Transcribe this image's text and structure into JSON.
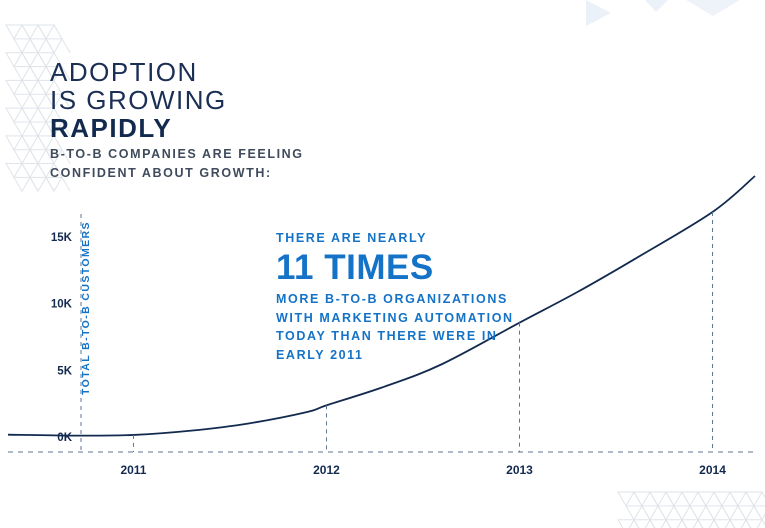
{
  "heading": {
    "line1": "ADOPTION",
    "line2": "IS GROWING",
    "line3": "RAPIDLY"
  },
  "subtitle": "B-TO-B COMPANIES ARE FEELING\nCONFIDENT ABOUT GROWTH:",
  "callout": {
    "pre": "THERE ARE NEARLY",
    "big": "11 TIMES",
    "post": "MORE B-TO-B ORGANIZATIONS\nWITH MARKETING AUTOMATION\nTODAY THAN THERE WERE IN\nEARLY 2011"
  },
  "colors": {
    "navy": "#132a4f",
    "accent": "#1473c7",
    "dashed": "#5d7590",
    "triangle": "#dfe4ea"
  },
  "chart_data": {
    "type": "line",
    "ylabel": "TOTAL B-TO-B CUSTOMERS",
    "xlabel": "",
    "yticks": [
      "0K",
      "5K",
      "10K",
      "15K"
    ],
    "ytick_values": [
      0,
      5000,
      10000,
      15000
    ],
    "ylim": [
      0,
      15000
    ],
    "xticks": [
      "2011",
      "2012",
      "2013",
      "2014"
    ],
    "xtick_values": [
      2011.0,
      2012.0,
      2013.0,
      2014.0
    ],
    "xlim": [
      2010.35,
      2014.22
    ],
    "grid": false,
    "series": [
      {
        "x": [
          2010.35,
          2010.7,
          2011.0,
          2011.3,
          2011.6,
          2011.9,
          2012.0,
          2012.3,
          2012.6,
          2013.0,
          2013.3,
          2013.6,
          2014.0,
          2014.22
        ],
        "y": [
          100,
          30,
          80,
          400,
          950,
          1800,
          2300,
          3700,
          5400,
          8500,
          10800,
          13300,
          16800,
          19500
        ]
      }
    ]
  }
}
